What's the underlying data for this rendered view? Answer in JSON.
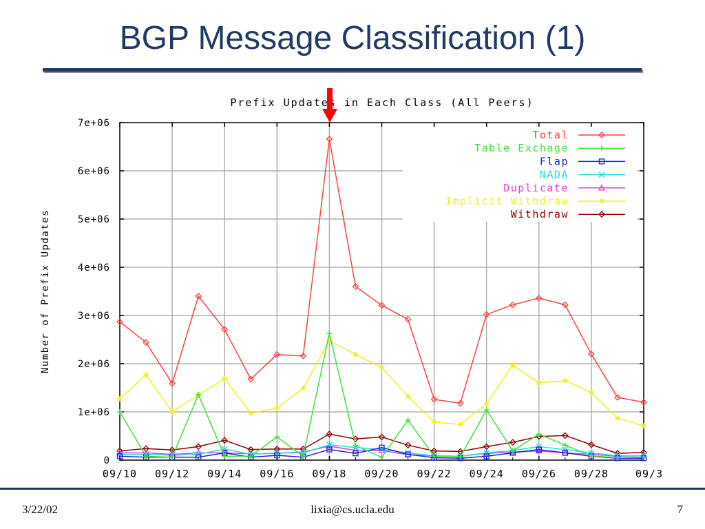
{
  "slide": {
    "title": "BGP Message Classification (1)",
    "footer_date": "3/22/02",
    "footer_email": "lixia@cs.ucla.edu",
    "footer_page": "7"
  },
  "colors": {
    "title": "#1f3a66",
    "arrow": "#ff0000",
    "grid": "#b0b0b0"
  },
  "chart_data": {
    "type": "line",
    "title": "Prefix Updates in Each Class (All Peers)",
    "xlabel": "",
    "ylabel": "Number of Prefix Updates",
    "ylim": [
      0,
      7000000
    ],
    "yticks": [
      "0",
      "1e+06",
      "2e+06",
      "3e+06",
      "4e+06",
      "5e+06",
      "6e+06",
      "7e+06"
    ],
    "xticks": [
      "09/10",
      "09/12",
      "09/14",
      "09/16",
      "09/18",
      "09/20",
      "09/22",
      "09/24",
      "09/26",
      "09/28",
      "09/3"
    ],
    "x": [
      "09/10",
      "09/11",
      "09/12",
      "09/13",
      "09/14",
      "09/15",
      "09/16",
      "09/17",
      "09/18",
      "09/19",
      "09/20",
      "09/21",
      "09/22",
      "09/23",
      "09/24",
      "09/25",
      "09/26",
      "09/27",
      "09/28",
      "09/29",
      "09/30"
    ],
    "grid": true,
    "legend_position": "top-right",
    "annotation": "arrow at 09/18",
    "series": [
      {
        "name": "Total",
        "color": "#ff4040",
        "marker": "diamond",
        "values": [
          2870000,
          2440000,
          1590000,
          3400000,
          2710000,
          1680000,
          2190000,
          2160000,
          6660000,
          3600000,
          3210000,
          2920000,
          1260000,
          1180000,
          3020000,
          3220000,
          3360000,
          3220000,
          2200000,
          1300000,
          1200000
        ]
      },
      {
        "name": "Table Exchage",
        "color": "#40e040",
        "marker": "plus",
        "values": [
          1000000,
          80000,
          60000,
          1360000,
          80000,
          80000,
          480000,
          80000,
          2630000,
          300000,
          60000,
          830000,
          80000,
          70000,
          1040000,
          190000,
          540000,
          310000,
          90000,
          50000,
          60000
        ]
      },
      {
        "name": "Flap",
        "color": "#2020e0",
        "marker": "square",
        "values": [
          80000,
          60000,
          60000,
          60000,
          150000,
          60000,
          100000,
          60000,
          220000,
          140000,
          260000,
          120000,
          50000,
          40000,
          80000,
          150000,
          220000,
          150000,
          80000,
          40000,
          40000
        ]
      },
      {
        "name": "NADA",
        "color": "#20e0e0",
        "marker": "x",
        "values": [
          120000,
          120000,
          100000,
          120000,
          230000,
          120000,
          150000,
          150000,
          320000,
          260000,
          220000,
          150000,
          90000,
          80000,
          150000,
          200000,
          280000,
          220000,
          150000,
          90000,
          90000
        ]
      },
      {
        "name": "Duplicate",
        "color": "#e040e0",
        "marker": "triangle",
        "values": [
          150000,
          150000,
          120000,
          150000,
          150000,
          130000,
          140000,
          170000,
          290000,
          200000,
          200000,
          110000,
          90000,
          80000,
          140000,
          170000,
          190000,
          150000,
          120000,
          80000,
          90000
        ]
      },
      {
        "name": "Implicit Withdraw",
        "color": "#f0f020",
        "marker": "star",
        "values": [
          1270000,
          1770000,
          1000000,
          1350000,
          1690000,
          970000,
          1080000,
          1490000,
          2480000,
          2190000,
          1920000,
          1320000,
          790000,
          740000,
          1170000,
          1970000,
          1600000,
          1650000,
          1400000,
          870000,
          710000
        ]
      },
      {
        "name": "Withdraw",
        "color": "#900000",
        "marker": "diamond",
        "values": [
          190000,
          240000,
          210000,
          280000,
          410000,
          220000,
          230000,
          230000,
          540000,
          440000,
          480000,
          310000,
          190000,
          180000,
          280000,
          370000,
          490000,
          510000,
          320000,
          140000,
          160000
        ]
      }
    ]
  }
}
